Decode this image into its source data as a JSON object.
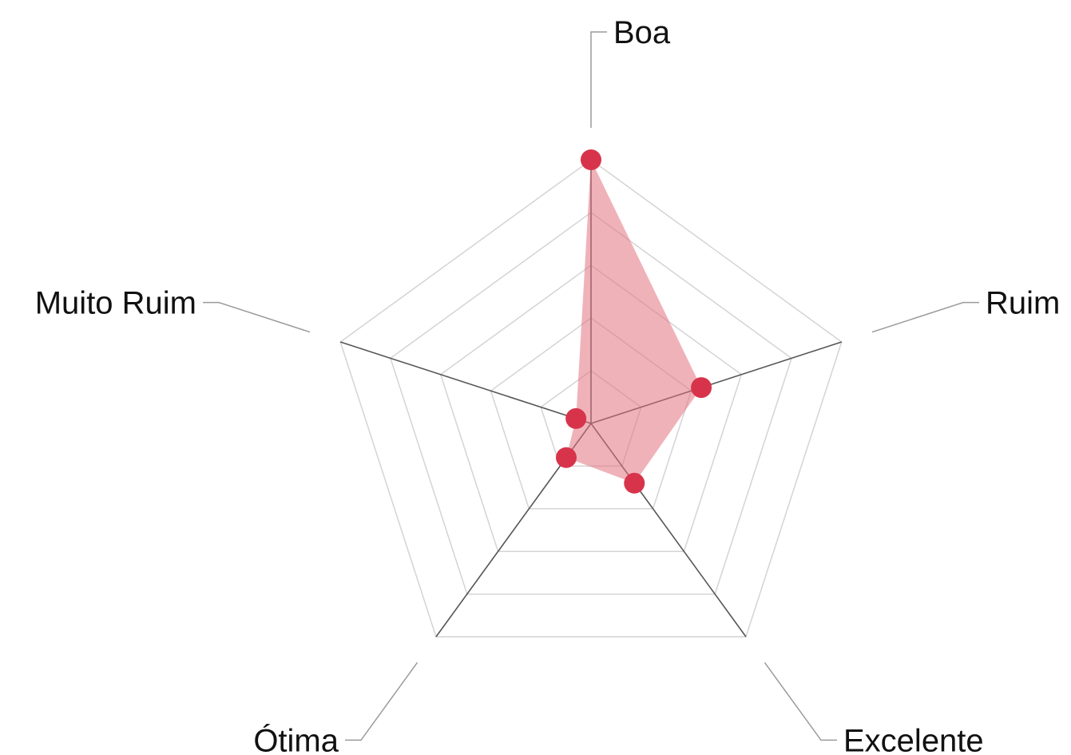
{
  "chart_data": {
    "type": "radar",
    "categories": [
      "Boa",
      "Ruim",
      "Excelente",
      "Ótima",
      "Muito Ruim"
    ],
    "values": [
      5,
      2.2,
      1.4,
      0.8,
      0.3
    ],
    "range": [
      0,
      5
    ],
    "rings": 5,
    "grid": true,
    "colors": {
      "fill": "#e3737f",
      "point": "#d7344c",
      "grid": "#d4d4d4",
      "axis": "#555555",
      "leader": "#9a9a9a"
    }
  }
}
